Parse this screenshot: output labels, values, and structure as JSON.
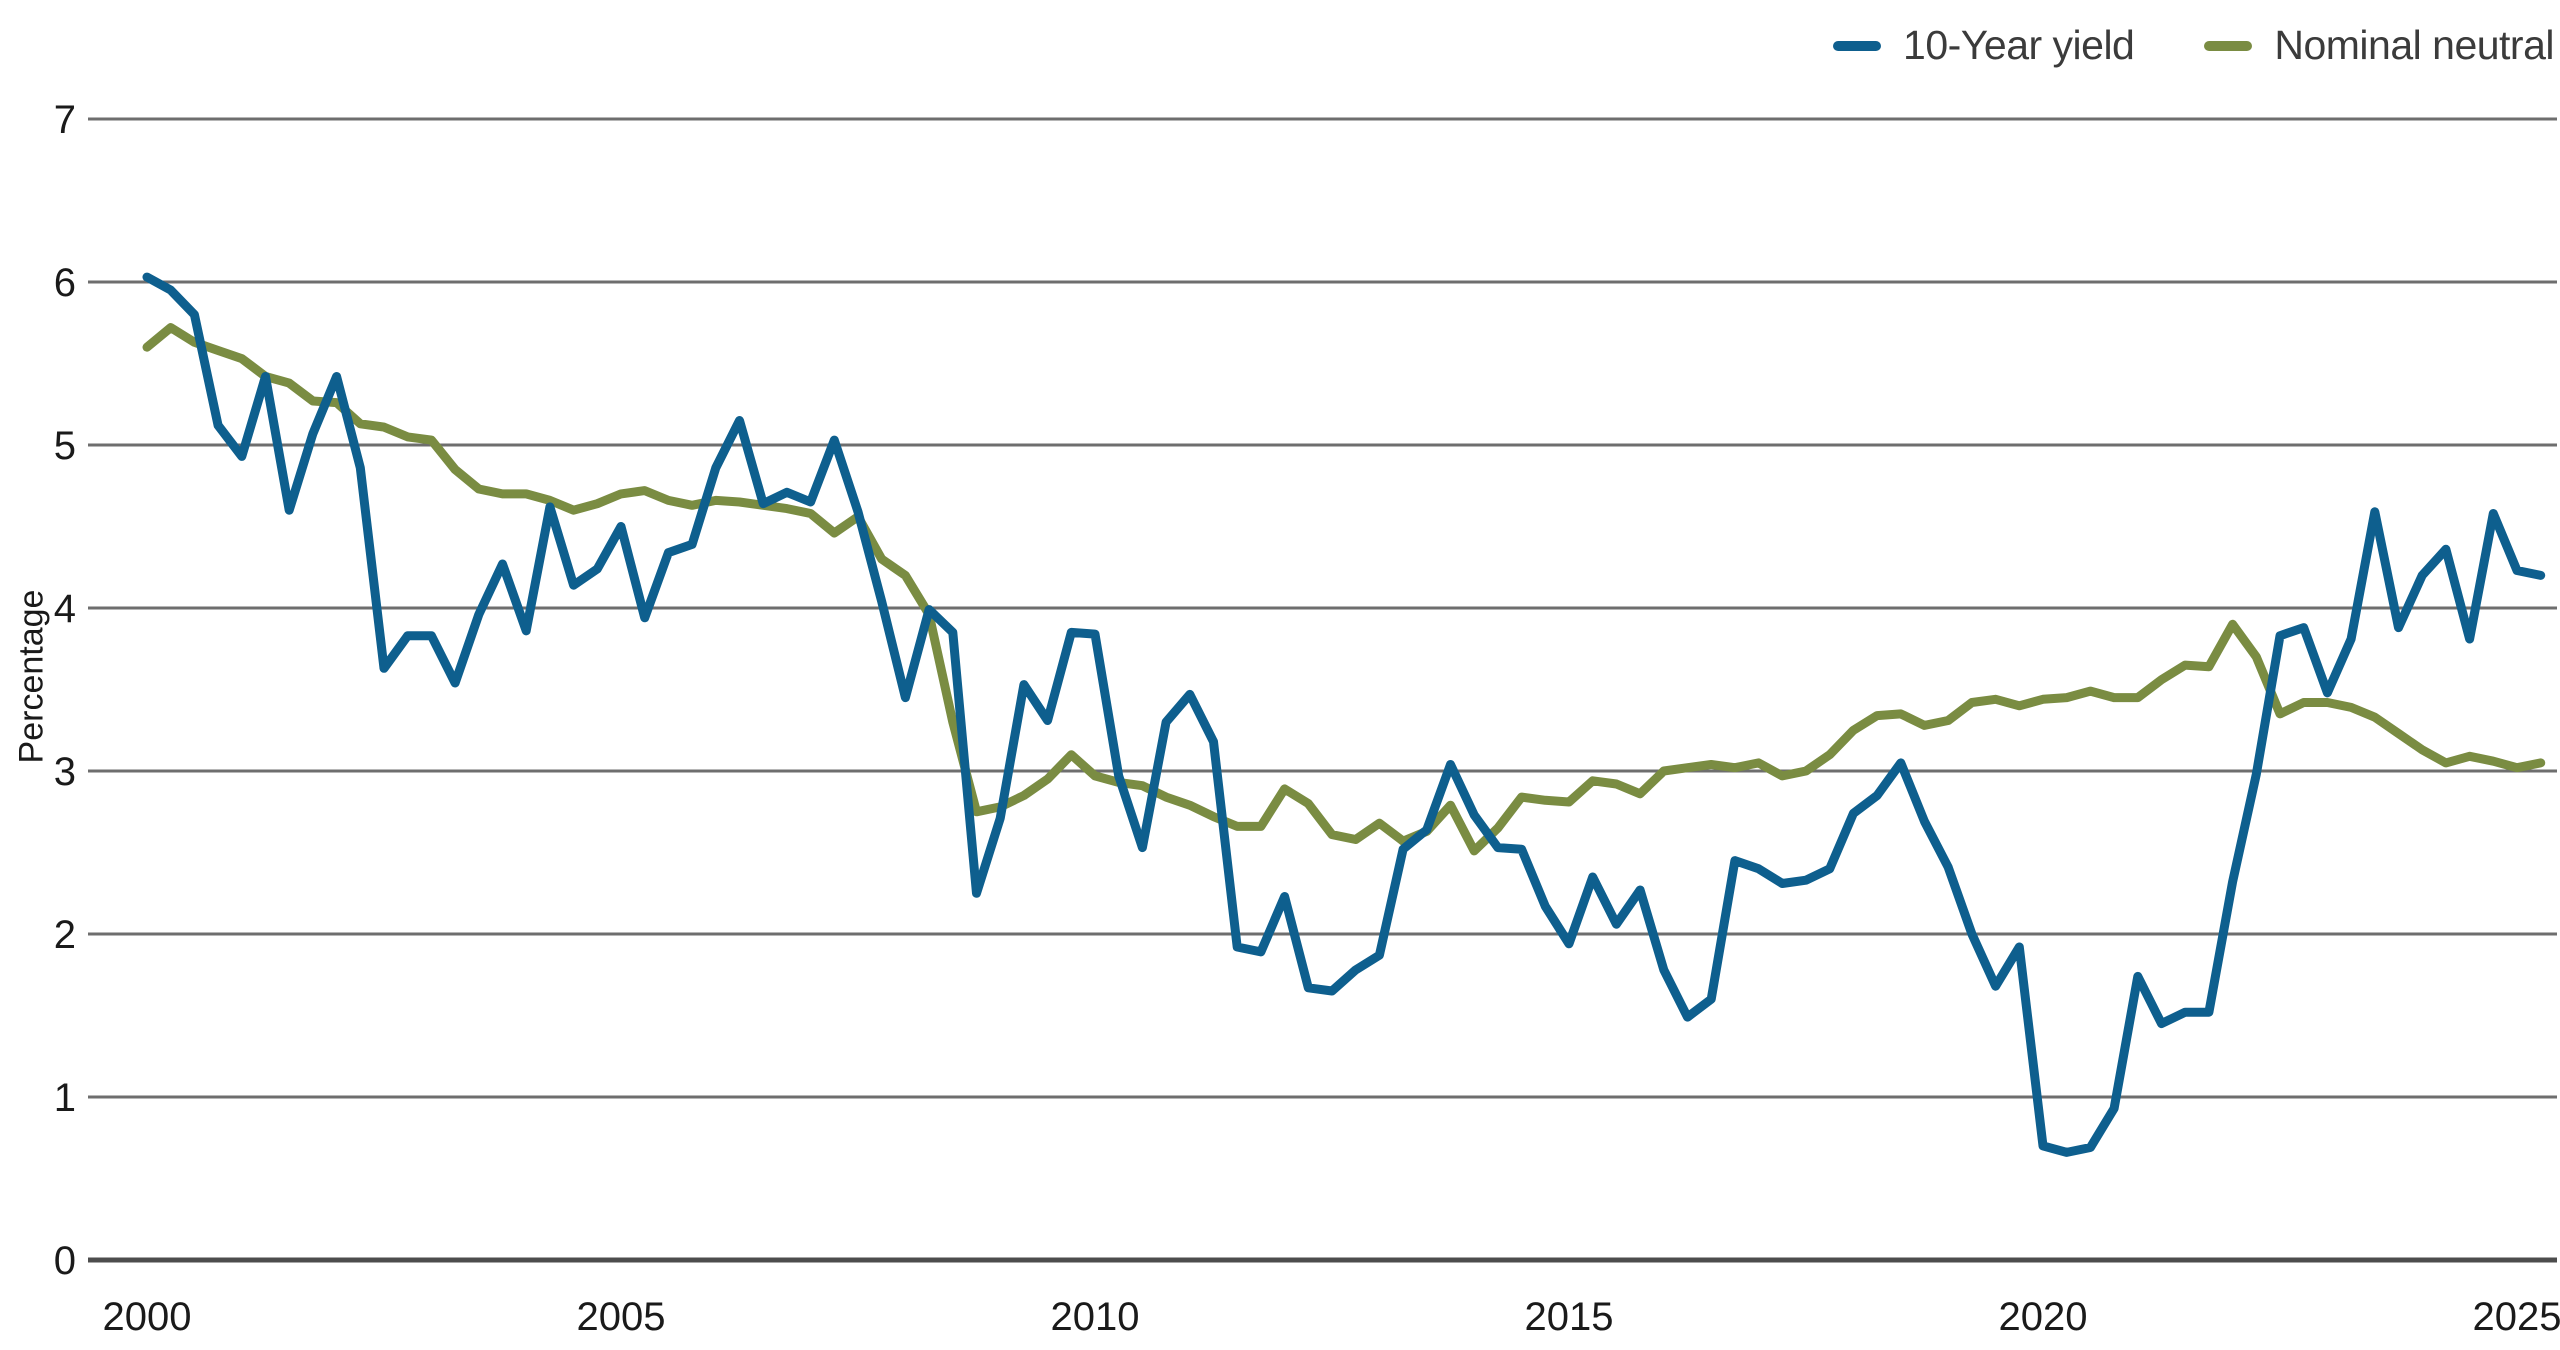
{
  "chart": {
    "ylabel": "Percentage",
    "legend": [
      {
        "label": "10-Year yield",
        "color": "#0E5F8E"
      },
      {
        "label": "Nominal neutral",
        "color": "#7A8C42"
      }
    ]
  },
  "chart_data": {
    "type": "line",
    "title": "",
    "xlabel": "",
    "ylabel": "Percentage",
    "x_unit": "year, quarterly observations",
    "x_start": 2000.0,
    "x_step": 0.25,
    "xticks": [
      2000,
      2005,
      2010,
      2015,
      2020,
      2025
    ],
    "ylim": [
      0,
      7
    ],
    "yticks": [
      0,
      1,
      2,
      3,
      4,
      5,
      6,
      7
    ],
    "grid": "horizontal",
    "legend_position": "top-right",
    "series": [
      {
        "name": "10-Year yield",
        "color": "#0E5F8E",
        "values": [
          6.03,
          5.95,
          5.8,
          5.12,
          4.93,
          5.42,
          4.6,
          5.07,
          5.42,
          4.86,
          3.63,
          3.83,
          3.83,
          3.54,
          3.96,
          4.27,
          3.86,
          4.62,
          4.14,
          4.24,
          4.5,
          3.94,
          4.34,
          4.39,
          4.86,
          5.15,
          4.64,
          4.71,
          4.65,
          5.03,
          4.59,
          4.04,
          3.45,
          3.99,
          3.85,
          2.25,
          2.71,
          3.53,
          3.31,
          3.85,
          3.84,
          2.97,
          2.53,
          3.3,
          3.47,
          3.18,
          1.92,
          1.89,
          2.23,
          1.67,
          1.65,
          1.78,
          1.87,
          2.52,
          2.64,
          3.04,
          2.73,
          2.53,
          2.52,
          2.17,
          1.94,
          2.35,
          2.06,
          2.27,
          1.78,
          1.49,
          1.6,
          2.45,
          2.4,
          2.31,
          2.33,
          2.4,
          2.74,
          2.85,
          3.05,
          2.69,
          2.41,
          2.0,
          1.68,
          1.92,
          0.7,
          0.66,
          0.69,
          0.93,
          1.74,
          1.45,
          1.52,
          1.52,
          2.32,
          2.98,
          3.83,
          3.88,
          3.48,
          3.81,
          4.59,
          3.88,
          4.2,
          4.36,
          3.81,
          4.58,
          4.23,
          4.2
        ]
      },
      {
        "name": "Nominal neutral",
        "color": "#7A8C42",
        "values": [
          5.6,
          5.72,
          5.63,
          5.58,
          5.53,
          5.42,
          5.38,
          5.27,
          5.26,
          5.13,
          5.11,
          5.05,
          5.03,
          4.85,
          4.73,
          4.7,
          4.7,
          4.66,
          4.6,
          4.64,
          4.7,
          4.72,
          4.66,
          4.63,
          4.66,
          4.65,
          4.63,
          4.61,
          4.58,
          4.46,
          4.56,
          4.3,
          4.2,
          3.96,
          3.3,
          2.75,
          2.78,
          2.85,
          2.95,
          3.1,
          2.97,
          2.93,
          2.91,
          2.84,
          2.79,
          2.72,
          2.66,
          2.66,
          2.89,
          2.8,
          2.61,
          2.58,
          2.68,
          2.57,
          2.63,
          2.79,
          2.51,
          2.65,
          2.84,
          2.82,
          2.81,
          2.94,
          2.92,
          2.86,
          3.0,
          3.02,
          3.04,
          3.02,
          3.05,
          2.97,
          3.0,
          3.1,
          3.25,
          3.34,
          3.35,
          3.28,
          3.31,
          3.42,
          3.44,
          3.4,
          3.44,
          3.45,
          3.49,
          3.45,
          3.45,
          3.56,
          3.65,
          3.64,
          3.9,
          3.7,
          3.35,
          3.42,
          3.42,
          3.39,
          3.33,
          3.23,
          3.13,
          3.05,
          3.09,
          3.06,
          3.02,
          3.05
        ]
      }
    ]
  }
}
